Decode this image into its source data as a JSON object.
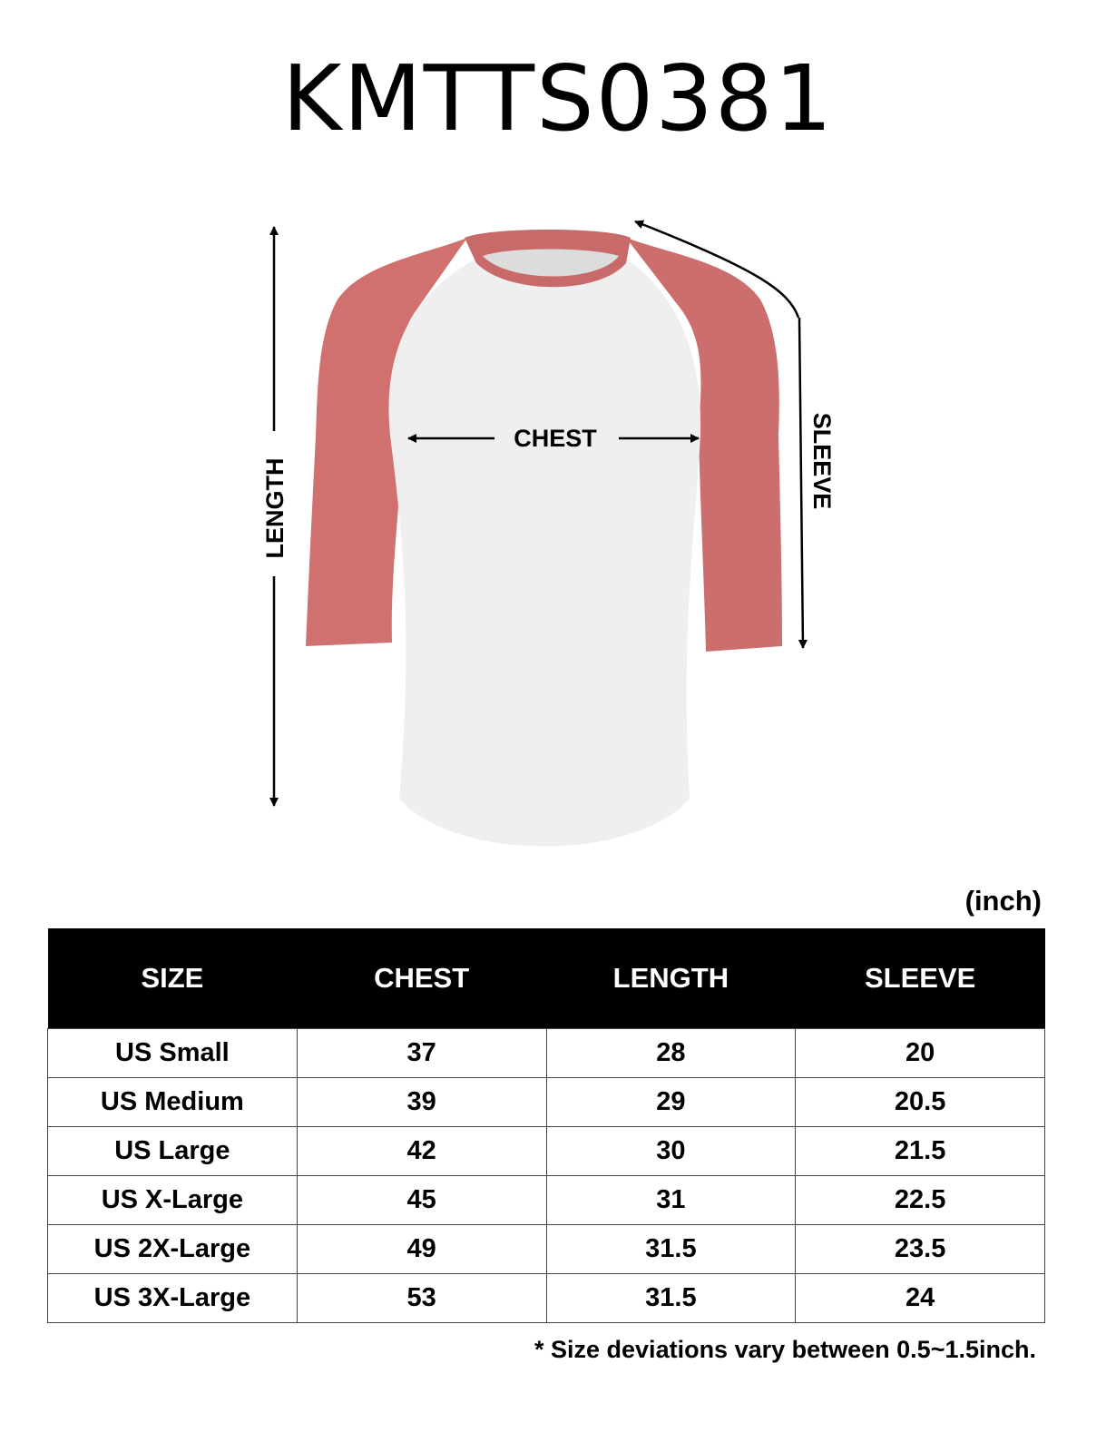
{
  "title": "KMTTS0381",
  "diagram": {
    "labels": {
      "chest": "CHEST",
      "length": "LENGTH",
      "sleeve": "SLEEVE"
    },
    "colors": {
      "sleeve": "#d0706f",
      "body": "#efefef",
      "arrow": "#000000"
    }
  },
  "unit": "(inch)",
  "table": {
    "headers": [
      "SIZE",
      "CHEST",
      "LENGTH",
      "SLEEVE"
    ],
    "rows": [
      [
        "US Small",
        "37",
        "28",
        "20"
      ],
      [
        "US Medium",
        "39",
        "29",
        "20.5"
      ],
      [
        "US Large",
        "42",
        "30",
        "21.5"
      ],
      [
        "US X-Large",
        "45",
        "31",
        "22.5"
      ],
      [
        "US 2X-Large",
        "49",
        "31.5",
        "23.5"
      ],
      [
        "US 3X-Large",
        "53",
        "31.5",
        "24"
      ]
    ]
  },
  "note": "* Size deviations vary between 0.5~1.5inch."
}
